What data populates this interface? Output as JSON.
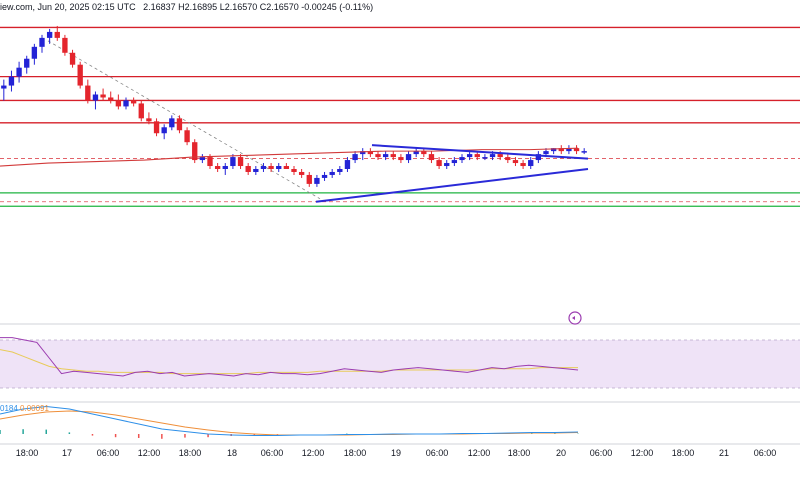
{
  "header": {
    "source": "iew.com, Jun 20, 2025 02:15 UTC",
    "ohlc": "2.16837  H2.16895  L2.16570  C2.16570  -0.00245 (-0.11%)"
  },
  "macd_label": {
    "a": "0184",
    "b": "0.00091"
  },
  "colors": {
    "up": "#2323d6",
    "down": "#e4252d",
    "resistance": "#d6202a",
    "support": "#1fb440",
    "trendline": "#2a2ad8",
    "sma": "#d23a3a",
    "rsi_band": "#efe3f7",
    "rsi_line": "#9b3cb0",
    "rsi_ma": "#e8cb5a",
    "macd": "#2d8fe8",
    "signal": "#ef8f3a"
  },
  "chart_data": {
    "type": "candlestick",
    "x_tick_labels": [
      "18:00",
      "17",
      "06:00",
      "12:00",
      "18:00",
      "18",
      "06:00",
      "12:00",
      "18:00",
      "19",
      "06:00",
      "12:00",
      "18:00",
      "20",
      "06:00",
      "12:00",
      "18:00",
      "21",
      "06:00"
    ],
    "candles": [
      [
        0.77,
        0.8,
        0.73,
        0.78
      ],
      [
        0.78,
        0.83,
        0.76,
        0.81
      ],
      [
        0.81,
        0.86,
        0.79,
        0.84
      ],
      [
        0.84,
        0.88,
        0.82,
        0.87
      ],
      [
        0.87,
        0.92,
        0.85,
        0.91
      ],
      [
        0.91,
        0.95,
        0.89,
        0.94
      ],
      [
        0.94,
        0.97,
        0.92,
        0.96
      ],
      [
        0.96,
        0.98,
        0.93,
        0.94
      ],
      [
        0.94,
        0.95,
        0.88,
        0.89
      ],
      [
        0.89,
        0.9,
        0.84,
        0.85
      ],
      [
        0.85,
        0.86,
        0.77,
        0.78
      ],
      [
        0.78,
        0.8,
        0.72,
        0.73
      ],
      [
        0.73,
        0.76,
        0.7,
        0.75
      ],
      [
        0.75,
        0.77,
        0.73,
        0.74
      ],
      [
        0.74,
        0.76,
        0.72,
        0.73
      ],
      [
        0.73,
        0.75,
        0.7,
        0.71
      ],
      [
        0.71,
        0.74,
        0.7,
        0.73
      ],
      [
        0.73,
        0.74,
        0.71,
        0.72
      ],
      [
        0.72,
        0.73,
        0.66,
        0.67
      ],
      [
        0.67,
        0.69,
        0.65,
        0.66
      ],
      [
        0.66,
        0.67,
        0.61,
        0.62
      ],
      [
        0.62,
        0.65,
        0.6,
        0.64
      ],
      [
        0.64,
        0.68,
        0.63,
        0.67
      ],
      [
        0.67,
        0.68,
        0.62,
        0.63
      ],
      [
        0.63,
        0.64,
        0.58,
        0.59
      ],
      [
        0.59,
        0.6,
        0.52,
        0.53
      ],
      [
        0.53,
        0.55,
        0.52,
        0.54
      ],
      [
        0.54,
        0.55,
        0.5,
        0.51
      ],
      [
        0.51,
        0.52,
        0.49,
        0.5
      ],
      [
        0.5,
        0.52,
        0.48,
        0.51
      ],
      [
        0.51,
        0.55,
        0.5,
        0.54
      ],
      [
        0.54,
        0.55,
        0.5,
        0.51
      ],
      [
        0.51,
        0.52,
        0.48,
        0.49
      ],
      [
        0.49,
        0.51,
        0.48,
        0.5
      ],
      [
        0.5,
        0.52,
        0.49,
        0.51
      ],
      [
        0.51,
        0.52,
        0.49,
        0.5
      ],
      [
        0.5,
        0.52,
        0.49,
        0.51
      ],
      [
        0.51,
        0.52,
        0.5,
        0.5
      ],
      [
        0.5,
        0.51,
        0.48,
        0.49
      ],
      [
        0.49,
        0.5,
        0.47,
        0.48
      ],
      [
        0.48,
        0.49,
        0.44,
        0.45
      ],
      [
        0.45,
        0.48,
        0.44,
        0.47
      ],
      [
        0.47,
        0.49,
        0.46,
        0.48
      ],
      [
        0.48,
        0.5,
        0.47,
        0.49
      ],
      [
        0.49,
        0.51,
        0.48,
        0.5
      ],
      [
        0.5,
        0.54,
        0.49,
        0.53
      ],
      [
        0.53,
        0.56,
        0.52,
        0.55
      ],
      [
        0.55,
        0.57,
        0.53,
        0.56
      ],
      [
        0.56,
        0.57,
        0.54,
        0.55
      ],
      [
        0.55,
        0.56,
        0.53,
        0.54
      ],
      [
        0.54,
        0.56,
        0.53,
        0.55
      ],
      [
        0.55,
        0.56,
        0.53,
        0.54
      ],
      [
        0.54,
        0.55,
        0.52,
        0.53
      ],
      [
        0.53,
        0.56,
        0.52,
        0.55
      ],
      [
        0.55,
        0.57,
        0.54,
        0.56
      ],
      [
        0.56,
        0.57,
        0.54,
        0.55
      ],
      [
        0.55,
        0.56,
        0.52,
        0.53
      ],
      [
        0.53,
        0.54,
        0.5,
        0.51
      ],
      [
        0.51,
        0.53,
        0.5,
        0.52
      ],
      [
        0.52,
        0.54,
        0.51,
        0.53
      ],
      [
        0.53,
        0.55,
        0.52,
        0.54
      ],
      [
        0.54,
        0.56,
        0.53,
        0.55
      ],
      [
        0.55,
        0.56,
        0.53,
        0.54
      ],
      [
        0.54,
        0.55,
        0.53,
        0.54
      ],
      [
        0.54,
        0.56,
        0.53,
        0.55
      ],
      [
        0.55,
        0.56,
        0.53,
        0.54
      ],
      [
        0.54,
        0.55,
        0.52,
        0.53
      ],
      [
        0.53,
        0.54,
        0.51,
        0.52
      ],
      [
        0.52,
        0.53,
        0.5,
        0.51
      ],
      [
        0.51,
        0.54,
        0.5,
        0.53
      ],
      [
        0.53,
        0.56,
        0.52,
        0.55
      ],
      [
        0.55,
        0.57,
        0.54,
        0.56
      ],
      [
        0.56,
        0.57,
        0.55,
        0.57
      ],
      [
        0.57,
        0.58,
        0.55,
        0.56
      ],
      [
        0.56,
        0.58,
        0.55,
        0.57
      ],
      [
        0.57,
        0.58,
        0.55,
        0.56
      ],
      [
        0.56,
        0.57,
        0.55,
        0.56
      ]
    ],
    "resistance_levels": [
      0.975,
      0.81,
      0.73,
      0.655
    ],
    "support_level": 0.42,
    "dashed_levels": [
      0.81,
      0.535,
      0.39
    ],
    "lower_support": 0.375,
    "sma": [
      0.51,
      0.52,
      0.525,
      0.53,
      0.54,
      0.545,
      0.55,
      0.555,
      0.56,
      0.56,
      0.565,
      0.565,
      0.57
    ],
    "triangle_upper": [
      [
        0.465,
        0.58
      ],
      [
        0.735,
        0.535
      ]
    ],
    "triangle_lower": [
      [
        0.395,
        0.39
      ],
      [
        0.735,
        0.5
      ]
    ],
    "decline_line": [
      [
        0.06,
        0.93
      ],
      [
        0.4,
        0.4
      ]
    ],
    "rsi": [
      72,
      72,
      70,
      68,
      55,
      42,
      44,
      43,
      42,
      41,
      40,
      43,
      44,
      42,
      43,
      40,
      41,
      42,
      41,
      40,
      42,
      41,
      43,
      42,
      42,
      41,
      42,
      44,
      46,
      45,
      44,
      43,
      45,
      46,
      47,
      46,
      45,
      44,
      43,
      45,
      47,
      46,
      48,
      49,
      48,
      47,
      46,
      45
    ],
    "rsi_ma": [
      62,
      60,
      56,
      52,
      48,
      46,
      45,
      44,
      44,
      43,
      43,
      43,
      43,
      43,
      42,
      42,
      42,
      42,
      42,
      42,
      42,
      43,
      43,
      43,
      43,
      43,
      44,
      44,
      44,
      44,
      44,
      44,
      45,
      45,
      45,
      45,
      45,
      45,
      45,
      45,
      46,
      46,
      46,
      46,
      47,
      47,
      47,
      47
    ],
    "macd": [
      0.4,
      0.5,
      0.55,
      0.5,
      0.4,
      0.3,
      0.2,
      0.1,
      0.05,
      0.0,
      -0.02,
      -0.03,
      -0.03,
      -0.02,
      -0.02,
      -0.01,
      -0.01,
      0.0,
      0.0,
      0.0,
      0.01,
      0.01,
      0.02,
      0.03,
      0.03,
      0.04
    ],
    "signal": [
      0.3,
      0.38,
      0.44,
      0.46,
      0.44,
      0.38,
      0.3,
      0.22,
      0.14,
      0.08,
      0.03,
      0.0,
      -0.02,
      -0.02,
      -0.02,
      -0.02,
      -0.01,
      -0.01,
      0.0,
      0.0,
      0.0,
      0.01,
      0.01,
      0.02,
      0.02,
      0.03
    ]
  }
}
